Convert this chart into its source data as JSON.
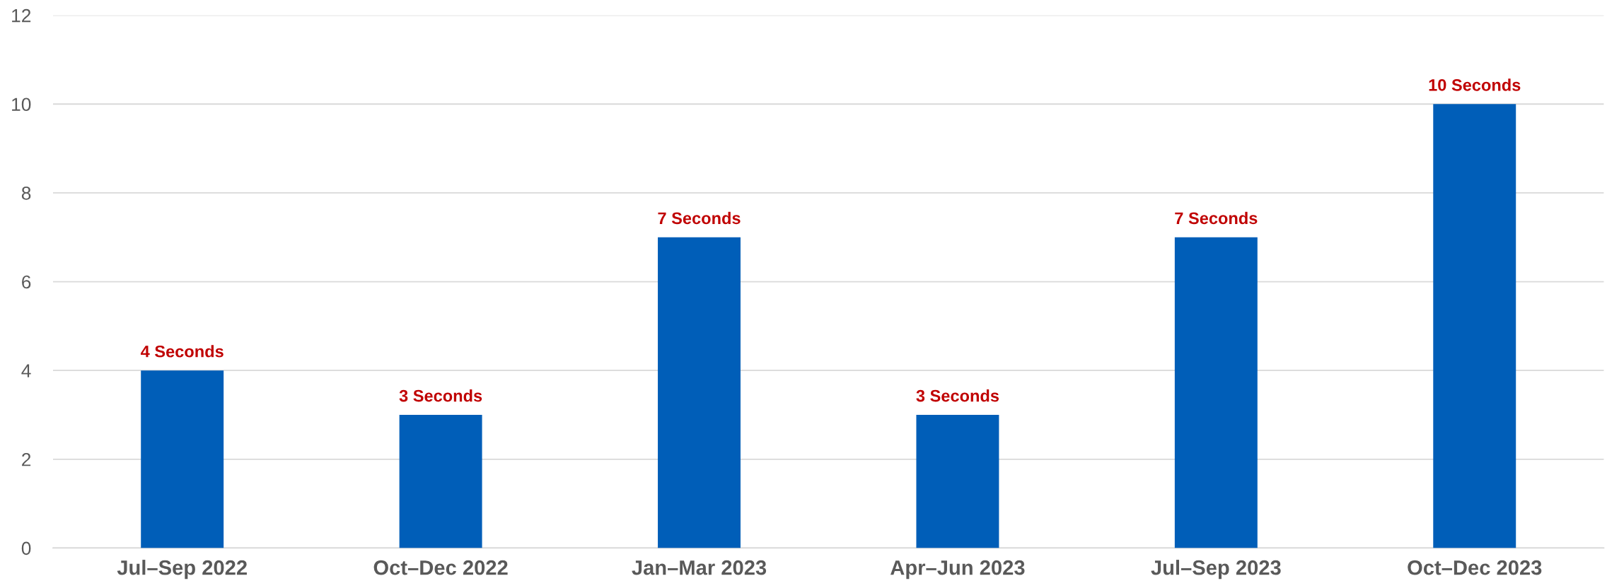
{
  "chart_data": {
    "type": "bar",
    "categories": [
      "Jul–Sep 2022",
      "Oct–Dec 2022",
      "Jan–Mar 2023",
      "Apr–Jun 2023",
      "Jul–Sep 2023",
      "Oct–Dec 2023"
    ],
    "series": [
      {
        "color": "#005eb8",
        "values": [
          4,
          3,
          7,
          3,
          7,
          10
        ],
        "value_labels": [
          "4 Seconds",
          "3 Seconds",
          "7 Seconds",
          "3 Seconds",
          "7 Seconds",
          "10 Seconds"
        ]
      }
    ],
    "ylim": [
      0,
      12
    ],
    "yticks": [
      0,
      2,
      4,
      6,
      8,
      10,
      12
    ],
    "grid": "y"
  }
}
